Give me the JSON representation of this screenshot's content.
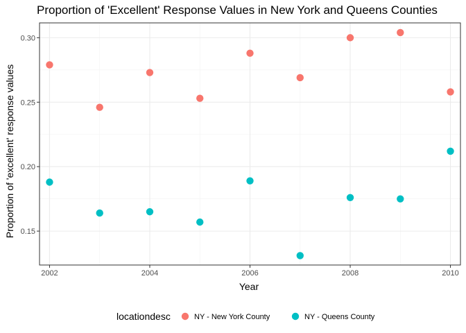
{
  "chart_data": {
    "type": "scatter",
    "title": "Proportion of 'Excellent' Response Values in New York and Queens Counties",
    "xlabel": "Year",
    "ylabel": "Proportion of 'excellent' response values",
    "xlim": [
      2001.8,
      2010.2
    ],
    "ylim": [
      0.1237,
      0.3115
    ],
    "x_ticks": [
      2002,
      2004,
      2006,
      2008,
      2010
    ],
    "y_ticks": [
      0.15,
      0.2,
      0.25,
      0.3
    ],
    "y_tick_labels": [
      "0.15",
      "0.20",
      "0.25",
      "0.30"
    ],
    "grid": true,
    "legend": {
      "title": "locationdesc",
      "position": "bottom"
    },
    "series": [
      {
        "name": "NY - New York County",
        "color": "#F8766D",
        "x": [
          2002,
          2003,
          2004,
          2005,
          2006,
          2007,
          2008,
          2009,
          2010
        ],
        "y": [
          0.279,
          0.246,
          0.273,
          0.253,
          0.288,
          0.269,
          0.3,
          0.304,
          0.258
        ]
      },
      {
        "name": "NY - Queens County",
        "color": "#00BFC4",
        "x": [
          2002,
          2003,
          2004,
          2005,
          2006,
          2007,
          2008,
          2009,
          2010
        ],
        "y": [
          0.188,
          0.164,
          0.165,
          0.157,
          0.189,
          0.131,
          0.176,
          0.175,
          0.212
        ]
      }
    ]
  }
}
